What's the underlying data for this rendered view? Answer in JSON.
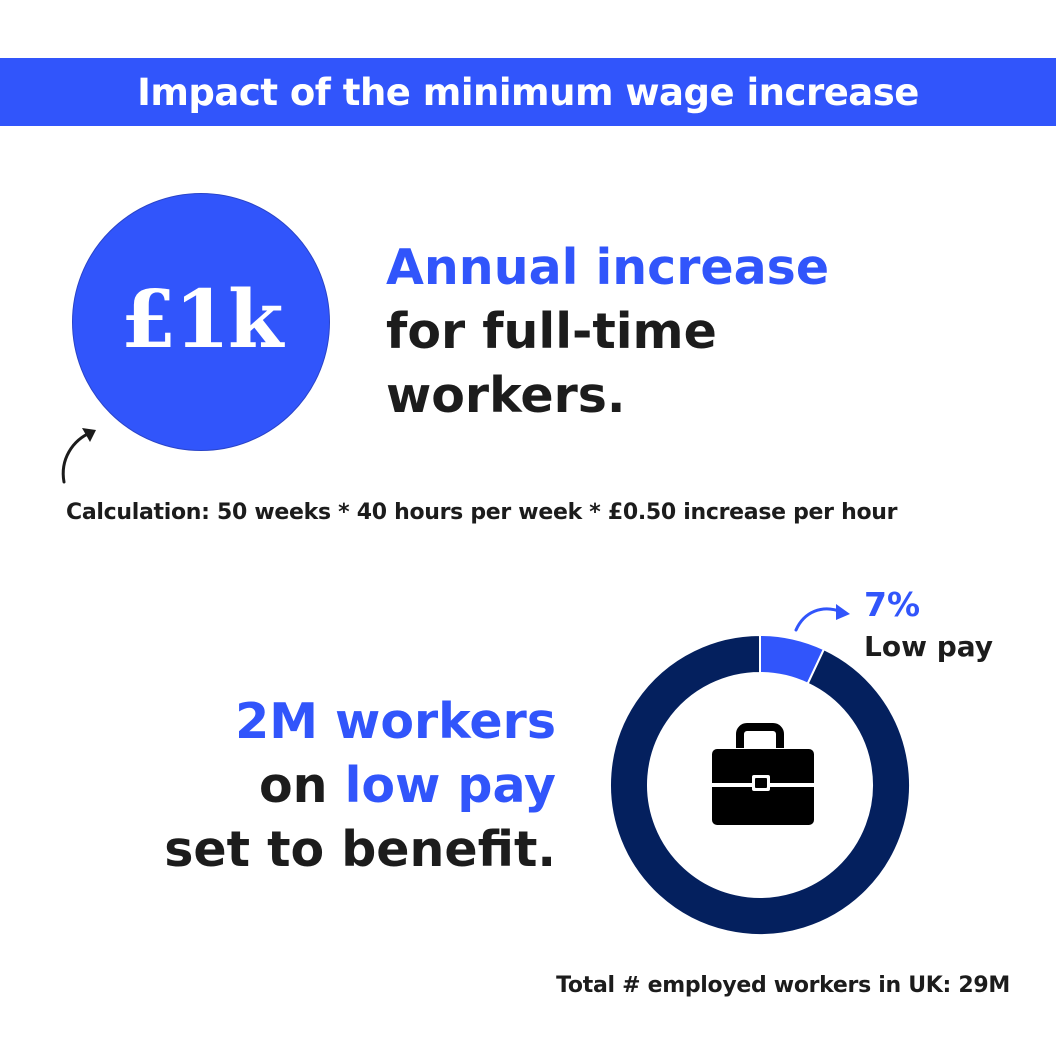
{
  "header": {
    "title": "Impact of the minimum wage increase"
  },
  "stat1": {
    "value": "£1k",
    "headline_accent": "Annual increase",
    "headline_line2": "for full-time",
    "headline_line3": "workers.",
    "calculation": "Calculation: 50 weeks * 40 hours per week * £0.50 increase per hour"
  },
  "stat2": {
    "line1": "2M workers",
    "line2_prefix": "on ",
    "line2_accent": "low pay",
    "line3": "set to benefit.",
    "total": "Total # employed workers in UK: 29M"
  },
  "chart_data": {
    "type": "pie",
    "donut": true,
    "center_icon": "briefcase-icon",
    "slices": [
      {
        "label": "Low pay",
        "percent": 7,
        "color": "#3155fb"
      },
      {
        "percent": 93,
        "color": "#04205e"
      }
    ],
    "annotation": {
      "value": "7%",
      "text": "Low pay"
    }
  },
  "colors": {
    "accent": "#3155fb",
    "dark_navy": "#04205e",
    "text": "#1c1c1c"
  }
}
